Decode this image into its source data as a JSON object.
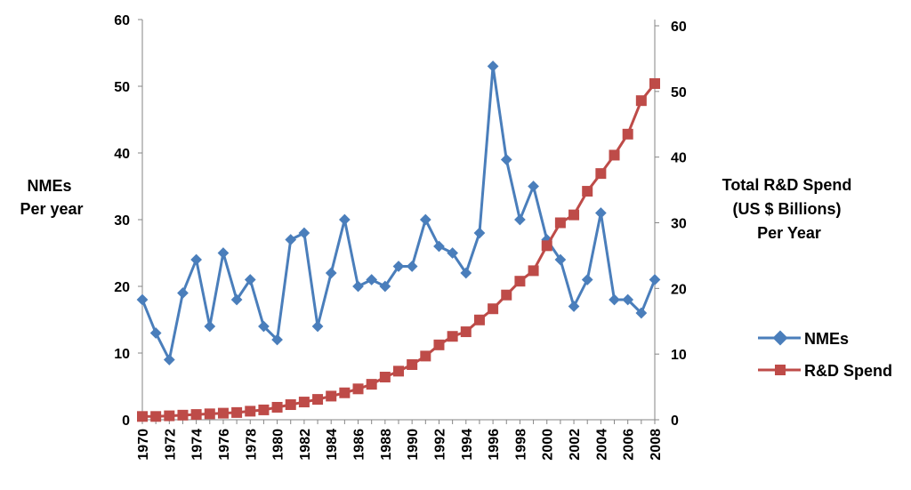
{
  "chart_data": {
    "type": "line",
    "x": [
      1970,
      1971,
      1972,
      1973,
      1974,
      1975,
      1976,
      1977,
      1978,
      1979,
      1980,
      1981,
      1982,
      1983,
      1984,
      1985,
      1986,
      1987,
      1988,
      1989,
      1990,
      1991,
      1992,
      1993,
      1994,
      1995,
      1996,
      1997,
      1998,
      1999,
      2000,
      2001,
      2002,
      2003,
      2004,
      2005,
      2006,
      2007,
      2008
    ],
    "x_tick_labels": [
      "1970",
      "1972",
      "1974",
      "1976",
      "1978",
      "1980",
      "1982",
      "1984",
      "1986",
      "1988",
      "1990",
      "1992",
      "1994",
      "1996",
      "1998",
      "2000",
      "2002",
      "2004",
      "2006",
      "2008"
    ],
    "y_left_ticks": [
      "0",
      "10",
      "20",
      "30",
      "40",
      "50",
      "60"
    ],
    "y_right_ticks": [
      "0",
      "10",
      "20",
      "30",
      "40",
      "50",
      "60"
    ],
    "ylim_left": [
      0,
      60
    ],
    "ylim_right": [
      0,
      60
    ],
    "ylabel_left": [
      "NMEs",
      "Per year"
    ],
    "ylabel_right": [
      "Total R&D Spend",
      "(US $ Billions)",
      "Per Year"
    ],
    "legend_placement": "right",
    "series": [
      {
        "name": "NMEs",
        "axis": "left",
        "color": "#4a7ebb",
        "marker": "diamond",
        "values": [
          18,
          13,
          9,
          19,
          24,
          14,
          25,
          18,
          21,
          14,
          12,
          27,
          28,
          14,
          22,
          30,
          20,
          21,
          20,
          23,
          23,
          30,
          26,
          25,
          22,
          28,
          53,
          39,
          30,
          35,
          27,
          24,
          17,
          21,
          31,
          18,
          18,
          16,
          21
        ]
      },
      {
        "name": "R&D Spend",
        "axis": "right",
        "color": "#be4b48",
        "marker": "square",
        "values": [
          0.5,
          0.5,
          0.6,
          0.7,
          0.8,
          0.9,
          1.0,
          1.1,
          1.3,
          1.5,
          1.9,
          2.3,
          2.7,
          3.1,
          3.6,
          4.1,
          4.7,
          5.4,
          6.5,
          7.4,
          8.4,
          9.7,
          11.4,
          12.7,
          13.4,
          15.2,
          16.9,
          19.0,
          21.1,
          22.7,
          26.5,
          30.0,
          31.2,
          34.8,
          37.5,
          40.3,
          43.5,
          48.6,
          51.2
        ]
      }
    ]
  }
}
